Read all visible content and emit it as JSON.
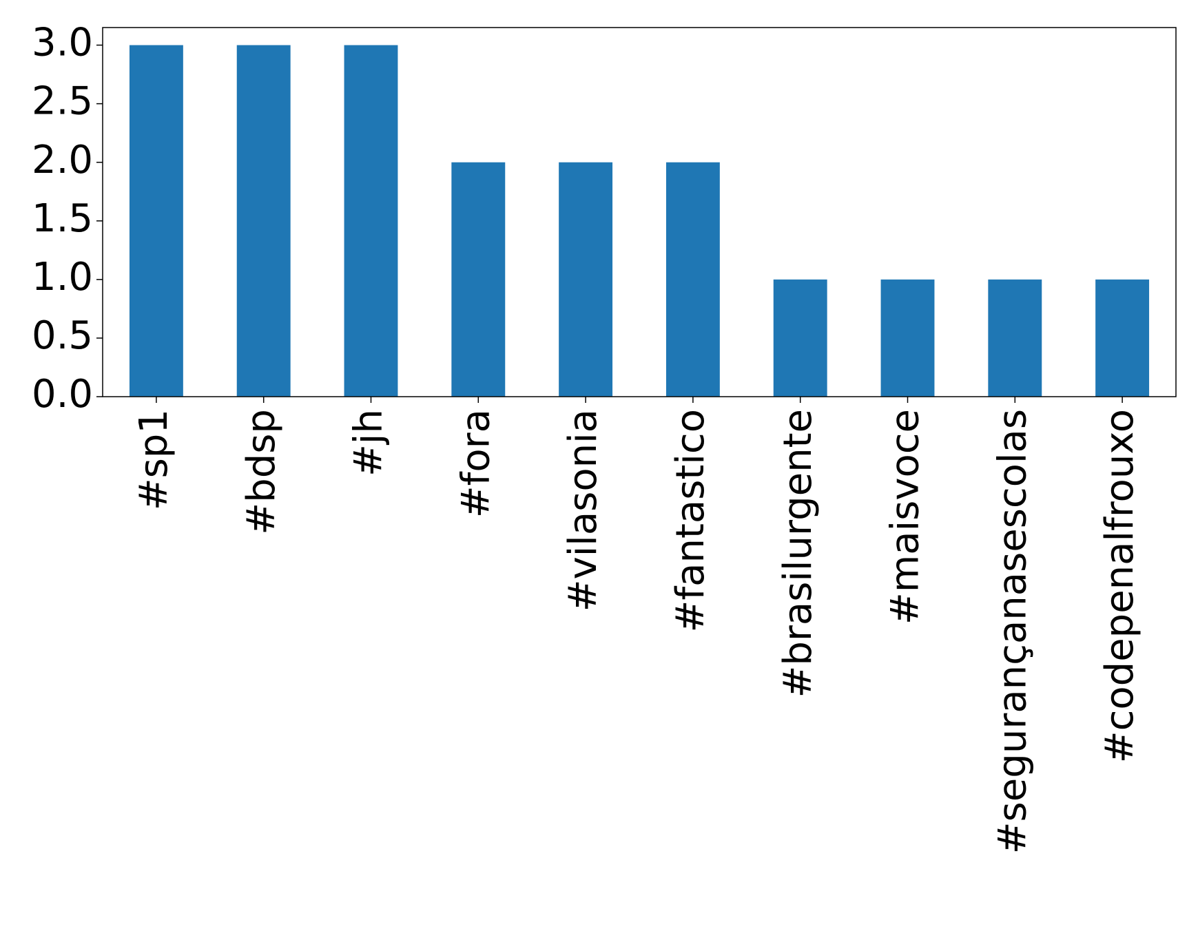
{
  "chart_data": {
    "type": "bar",
    "categories": [
      "#sp1",
      "#bdsp",
      "#jh",
      "#fora",
      "#vilasonia",
      "#fantastico",
      "#brasilurgente",
      "#maisvoce",
      "#segurançanasescolas",
      "#codepenalfrouxo"
    ],
    "values": [
      3,
      3,
      3,
      2,
      2,
      2,
      1,
      1,
      1,
      1
    ],
    "color": "#1f77b4",
    "ylim": [
      0,
      3.15
    ],
    "yticks": [
      {
        "value": 0,
        "label": "0.0"
      },
      {
        "value": 0.5,
        "label": "0.5"
      },
      {
        "value": 1,
        "label": "1.0"
      },
      {
        "value": 1.5,
        "label": "1.5"
      },
      {
        "value": 2,
        "label": "2.0"
      },
      {
        "value": 2.5,
        "label": "2.5"
      },
      {
        "value": 3,
        "label": "3.0"
      }
    ]
  }
}
